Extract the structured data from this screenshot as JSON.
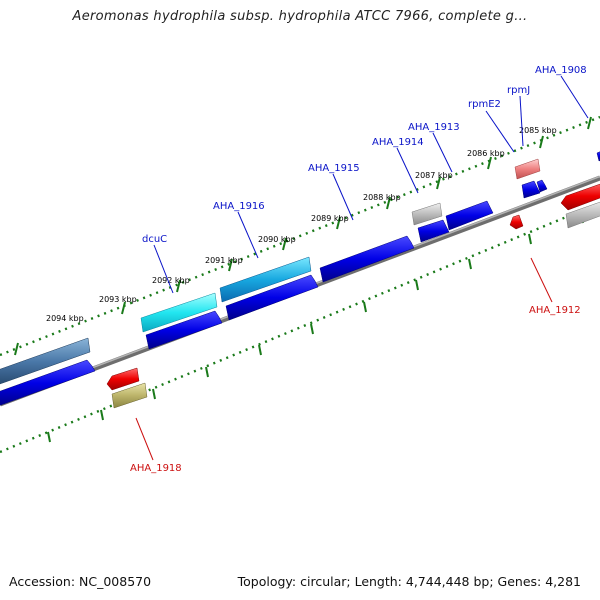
{
  "title": "Aeromonas hydrophila subsp. hydrophila ATCC 7966, complete g...",
  "footer": {
    "accession": "Accession: NC_008570",
    "summary": "Topology: circular; Length: 4,744,448 bp; Genes: 4,281"
  },
  "colors": {
    "forward_label": "#0a14c8",
    "reverse_label": "#cc1010",
    "ticks": "#1a7a1a",
    "backbone": "#8a8a8a"
  },
  "kbp_labels": [
    "2085 kbp",
    "2086 kbp",
    "2087 kbp",
    "2088 kbp",
    "2089 kbp",
    "2090 kbp",
    "2091 kbp",
    "2092 kbp",
    "2093 kbp",
    "2094 kbp"
  ],
  "gene_labels": {
    "AHA_1908": "AHA_1908",
    "rpmJ": "rpmJ",
    "rpmE2": "rpmE2",
    "AHA_1913": "AHA_1913",
    "AHA_1914": "AHA_1914",
    "AHA_1915": "AHA_1915",
    "AHA_1916": "AHA_1916",
    "dcuC": "dcuC",
    "AHA_1912": "AHA_1912",
    "AHA_1918": "AHA_1918"
  }
}
